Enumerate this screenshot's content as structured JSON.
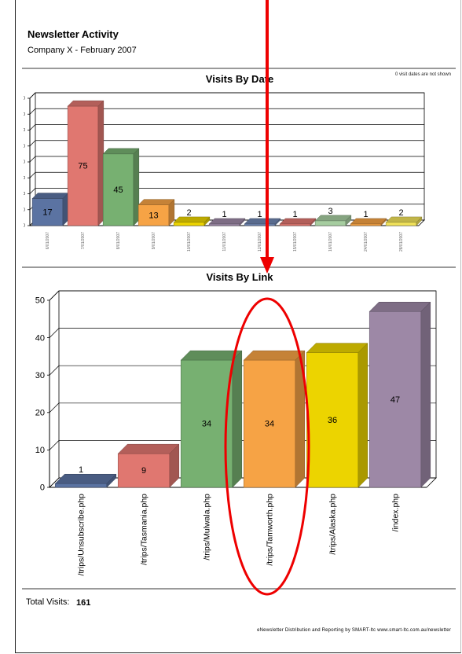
{
  "header": {
    "title": "Newsletter Activity",
    "subtitle": "Company X - February 2007"
  },
  "chart_note": "0 visit dates are not shown",
  "chart_data": [
    {
      "type": "bar",
      "title": "Visits By Date",
      "categories": [
        "6/01/2007",
        "7/01/2007",
        "8/01/2007",
        "9/01/2007",
        "10/01/2007",
        "11/01/2007",
        "12/01/2007",
        "15/01/2007",
        "16/01/2007",
        "24/01/2007",
        "28/01/2007"
      ],
      "values": [
        17,
        75,
        45,
        13,
        2,
        1,
        1,
        1,
        3,
        1,
        2
      ],
      "colors": [
        "#5b73a2",
        "#e07770",
        "#77b071",
        "#f6a345",
        "#ecd400",
        "#9d88a6",
        "#6f86b2",
        "#e07770",
        "#a6cda0",
        "#f6a345",
        "#f1e25a"
      ],
      "ylim": [
        0,
        80
      ],
      "yticks": [
        0,
        10,
        20,
        30,
        40,
        50,
        60,
        70,
        80
      ],
      "grid": true
    },
    {
      "type": "bar",
      "title": "Visits By Link",
      "categories": [
        "/trips/Unsubscribe.php",
        "/trips/Tasmania.php",
        "/trips/Mulwala.php",
        "/trips/Tamworth.php",
        "/trips/Alaska.php",
        "/index.php"
      ],
      "values": [
        1,
        9,
        34,
        34,
        36,
        47
      ],
      "colors": [
        "#5b73a2",
        "#e07770",
        "#77b071",
        "#f6a345",
        "#ecd400",
        "#9d88a6"
      ],
      "ylim": [
        0,
        50
      ],
      "yticks": [
        0,
        10,
        20,
        30,
        40,
        50
      ],
      "grid": true
    }
  ],
  "totals": {
    "label": "Total Visits:",
    "value": "161"
  },
  "footer": "eNewsletter Distribution and Reporting by SMART-ltc www.smart-ltc.com.au/newsletter",
  "annotation": {
    "arrow_color": "#ee0000",
    "highlight_color": "#ee0000",
    "highlighted_category": "/trips/Tamworth.php"
  }
}
